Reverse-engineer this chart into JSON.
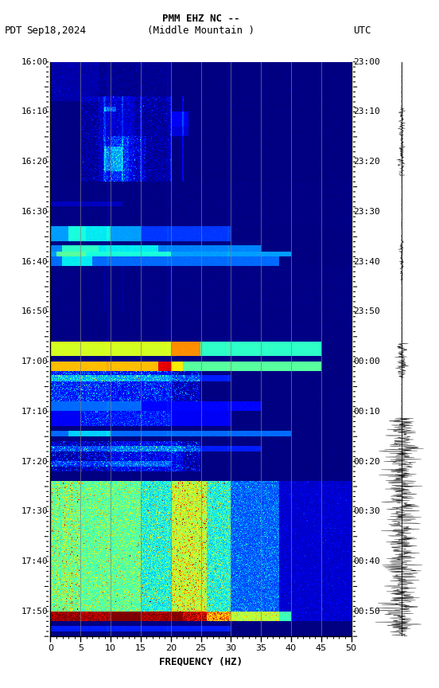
{
  "title_line1": "PMM EHZ NC --",
  "title_line2": "(Middle Mountain )",
  "left_label": "PDT",
  "date_label": "Sep18,2024",
  "right_label": "UTC",
  "freq_min": 0,
  "freq_max": 50,
  "freq_label": "FREQUENCY (HZ)",
  "time_labels_left": [
    "16:00",
    "16:10",
    "16:20",
    "16:30",
    "16:40",
    "16:50",
    "17:00",
    "17:10",
    "17:20",
    "17:30",
    "17:40",
    "17:50"
  ],
  "time_labels_right": [
    "23:00",
    "23:10",
    "23:20",
    "23:30",
    "23:40",
    "23:50",
    "00:00",
    "00:10",
    "00:20",
    "00:30",
    "00:40",
    "00:50"
  ],
  "vgrid_freqs": [
    5,
    10,
    15,
    20,
    25,
    30,
    35,
    40,
    45
  ],
  "fig_bg": "#ffffff",
  "seed": 42,
  "total_minutes": 115,
  "n_time": 690,
  "n_freq": 500
}
